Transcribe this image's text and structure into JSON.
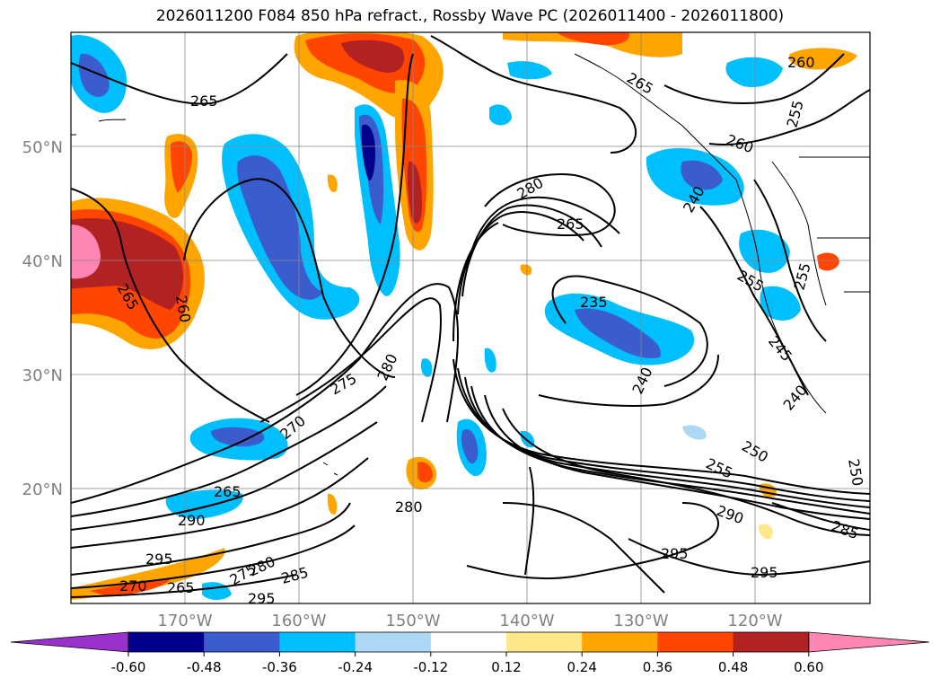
{
  "title": "2026011200 F084 850 hPa refract., Rossby Wave PC (2026011400 - 2026011800)",
  "map": {
    "lat_labels": [
      "50°N",
      "40°N",
      "30°N",
      "20°N"
    ],
    "lon_labels": [
      "170°W",
      "160°W",
      "150°W",
      "140°W",
      "130°W",
      "120°W"
    ],
    "label_color": "#808080"
  },
  "contour_labels": [
    "265",
    "260",
    "265",
    "275",
    "280",
    "270",
    "265",
    "290",
    "295",
    "275",
    "280",
    "285",
    "270",
    "265",
    "295",
    "280",
    "280",
    "265",
    "235",
    "240",
    "255",
    "250",
    "290",
    "295",
    "295",
    "285",
    "265",
    "260",
    "255",
    "240",
    "260",
    "255",
    "245",
    "240",
    "250",
    "255"
  ],
  "colorbar": {
    "ticks": [
      "-0.60",
      "-0.48",
      "-0.36",
      "-0.24",
      "-0.12",
      "0.12",
      "0.24",
      "0.36",
      "0.48",
      "0.60"
    ],
    "colors": [
      "#9932cc",
      "#00008b",
      "#3a5ccc",
      "#00bfff",
      "#add8f5",
      "#ffffff",
      "#ffe88a",
      "#ffa500",
      "#ff4500",
      "#b22222",
      "#ff85b3"
    ]
  }
}
